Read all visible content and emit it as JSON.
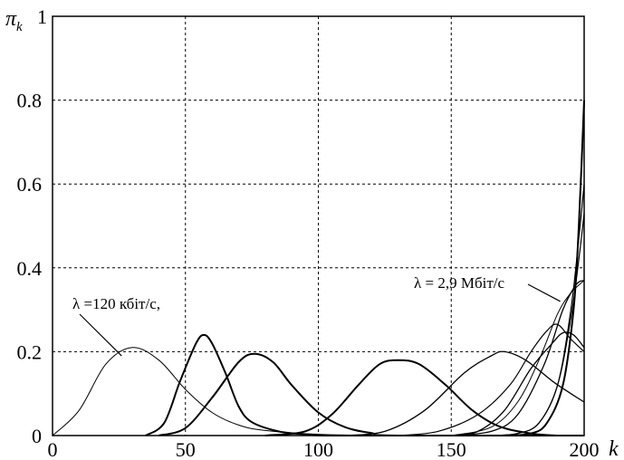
{
  "chart_data": {
    "type": "line",
    "xlabel": "k",
    "ylabel": "π_k",
    "xlim": [
      0,
      200
    ],
    "ylim": [
      0,
      1
    ],
    "xticks": [
      "0",
      "50",
      "100",
      "150",
      "200"
    ],
    "yticks": [
      "0",
      "0.2",
      "0.4",
      "0.6",
      "0.8",
      "1"
    ],
    "grid": true,
    "annotations": [
      {
        "text": "λ =120 кбіт/с,",
        "points_to": {
          "x": 26,
          "y": 0.19
        }
      },
      {
        "text": "λ = 2,9 Мбіт/с",
        "points_to": {
          "x": 191,
          "y": 0.32
        }
      }
    ],
    "series": [
      {
        "stroke_width": 1.0,
        "points": [
          [
            0,
            0
          ],
          [
            10,
            0.06
          ],
          [
            20,
            0.17
          ],
          [
            30,
            0.21
          ],
          [
            40,
            0.18
          ],
          [
            50,
            0.11
          ],
          [
            60,
            0.055
          ],
          [
            70,
            0.025
          ],
          [
            80,
            0.012
          ],
          [
            100,
            0.003
          ],
          [
            130,
            0
          ],
          [
            200,
            0
          ]
        ]
      },
      {
        "stroke_width": 2.0,
        "points": [
          [
            35,
            0
          ],
          [
            42,
            0.03
          ],
          [
            48,
            0.13
          ],
          [
            54,
            0.22
          ],
          [
            57,
            0.24
          ],
          [
            60,
            0.22
          ],
          [
            65,
            0.15
          ],
          [
            70,
            0.07
          ],
          [
            75,
            0.032
          ],
          [
            85,
            0.01
          ],
          [
            95,
            0.003
          ],
          [
            110,
            0
          ],
          [
            200,
            0
          ]
        ]
      },
      {
        "stroke_width": 2.0,
        "points": [
          [
            40,
            0
          ],
          [
            50,
            0.018
          ],
          [
            60,
            0.09
          ],
          [
            70,
            0.175
          ],
          [
            76,
            0.195
          ],
          [
            83,
            0.175
          ],
          [
            90,
            0.12
          ],
          [
            100,
            0.055
          ],
          [
            110,
            0.02
          ],
          [
            120,
            0.006
          ],
          [
            130,
            0
          ],
          [
            200,
            0
          ]
        ]
      },
      {
        "stroke_width": 2.0,
        "points": [
          [
            80,
            0
          ],
          [
            95,
            0.01
          ],
          [
            105,
            0.05
          ],
          [
            115,
            0.12
          ],
          [
            123,
            0.17
          ],
          [
            130,
            0.18
          ],
          [
            138,
            0.17
          ],
          [
            148,
            0.12
          ],
          [
            158,
            0.06
          ],
          [
            168,
            0.022
          ],
          [
            180,
            0.005
          ],
          [
            190,
            0
          ],
          [
            200,
            0
          ]
        ]
      },
      {
        "stroke_width": 1.3,
        "points": [
          [
            110,
            0
          ],
          [
            125,
            0.01
          ],
          [
            140,
            0.06
          ],
          [
            155,
            0.15
          ],
          [
            165,
            0.19
          ],
          [
            170,
            0.2
          ],
          [
            178,
            0.18
          ],
          [
            188,
            0.13
          ],
          [
            195,
            0.1
          ],
          [
            200,
            0.08
          ]
        ]
      },
      {
        "stroke_width": 1.3,
        "points": [
          [
            150,
            0
          ],
          [
            160,
            0.01
          ],
          [
            170,
            0.06
          ],
          [
            180,
            0.16
          ],
          [
            188,
            0.22
          ],
          [
            192,
            0.245
          ],
          [
            196,
            0.24
          ],
          [
            200,
            0.21
          ]
        ]
      },
      {
        "stroke_width": 1.3,
        "points": [
          [
            150,
            0
          ],
          [
            165,
            0.01
          ],
          [
            175,
            0.05
          ],
          [
            185,
            0.17
          ],
          [
            192,
            0.3
          ],
          [
            197,
            0.36
          ],
          [
            200,
            0.37
          ]
        ]
      },
      {
        "stroke_width": 1.0,
        "points": [
          [
            150,
            0
          ],
          [
            165,
            0.02
          ],
          [
            175,
            0.08
          ],
          [
            183,
            0.18
          ],
          [
            190,
            0.29
          ],
          [
            195,
            0.34
          ],
          [
            200,
            0.37
          ]
        ]
      },
      {
        "stroke_width": 1.2,
        "points": [
          [
            165,
            0
          ],
          [
            175,
            0.005
          ],
          [
            183,
            0.03
          ],
          [
            190,
            0.12
          ],
          [
            195,
            0.28
          ],
          [
            198,
            0.42
          ],
          [
            200,
            0.53
          ]
        ]
      },
      {
        "stroke_width": 1.2,
        "points": [
          [
            165,
            0
          ],
          [
            175,
            0.005
          ],
          [
            183,
            0.03
          ],
          [
            190,
            0.12
          ],
          [
            195,
            0.3
          ],
          [
            198,
            0.47
          ],
          [
            200,
            0.6
          ]
        ]
      },
      {
        "stroke_width": 2.0,
        "points": [
          [
            170,
            0
          ],
          [
            180,
            0.005
          ],
          [
            186,
            0.03
          ],
          [
            192,
            0.12
          ],
          [
            196,
            0.3
          ],
          [
            198,
            0.5
          ],
          [
            200,
            0.8
          ]
        ]
      },
      {
        "stroke_width": 1.2,
        "points": [
          [
            130,
            0
          ],
          [
            145,
            0.01
          ],
          [
            160,
            0.05
          ],
          [
            172,
            0.12
          ],
          [
            180,
            0.2
          ],
          [
            186,
            0.25
          ],
          [
            190,
            0.265
          ],
          [
            195,
            0.23
          ],
          [
            200,
            0.2
          ]
        ]
      }
    ]
  }
}
